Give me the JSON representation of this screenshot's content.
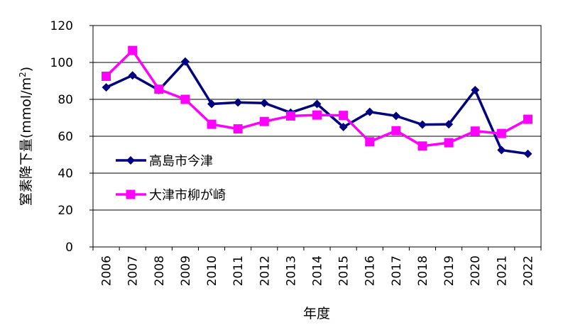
{
  "chart_data": {
    "type": "line",
    "xlabel": "年度",
    "ylabel_text": "窒素降下量(mmol/m",
    "ylabel_sup": "2",
    "ylabel_close": ")",
    "ylim": [
      0,
      120
    ],
    "yticks": [
      0,
      20,
      40,
      60,
      80,
      100,
      120
    ],
    "grid": true,
    "legend_position": "left-middle",
    "categories": [
      "2006",
      "2007",
      "2008",
      "2009",
      "2010",
      "2011",
      "2012",
      "2013",
      "2014",
      "2015",
      "2016",
      "2017",
      "2018",
      "2019",
      "2020",
      "2021",
      "2022"
    ],
    "series": [
      {
        "name": "高島市今津",
        "color": "#000080",
        "marker": "diamond",
        "values": [
          86.5,
          93,
          85,
          100.5,
          77.5,
          78.3,
          78,
          72.8,
          77.5,
          65,
          73.2,
          71,
          66.3,
          66.5,
          85,
          52.5,
          50.5
        ]
      },
      {
        "name": "大津市柳が崎",
        "color": "#ff00ff",
        "marker": "square",
        "values": [
          92.5,
          106.5,
          85.5,
          80,
          66.5,
          64,
          68,
          71,
          71.5,
          71.3,
          57,
          63,
          54.7,
          56.5,
          62.8,
          61.5,
          69.2
        ]
      }
    ]
  }
}
